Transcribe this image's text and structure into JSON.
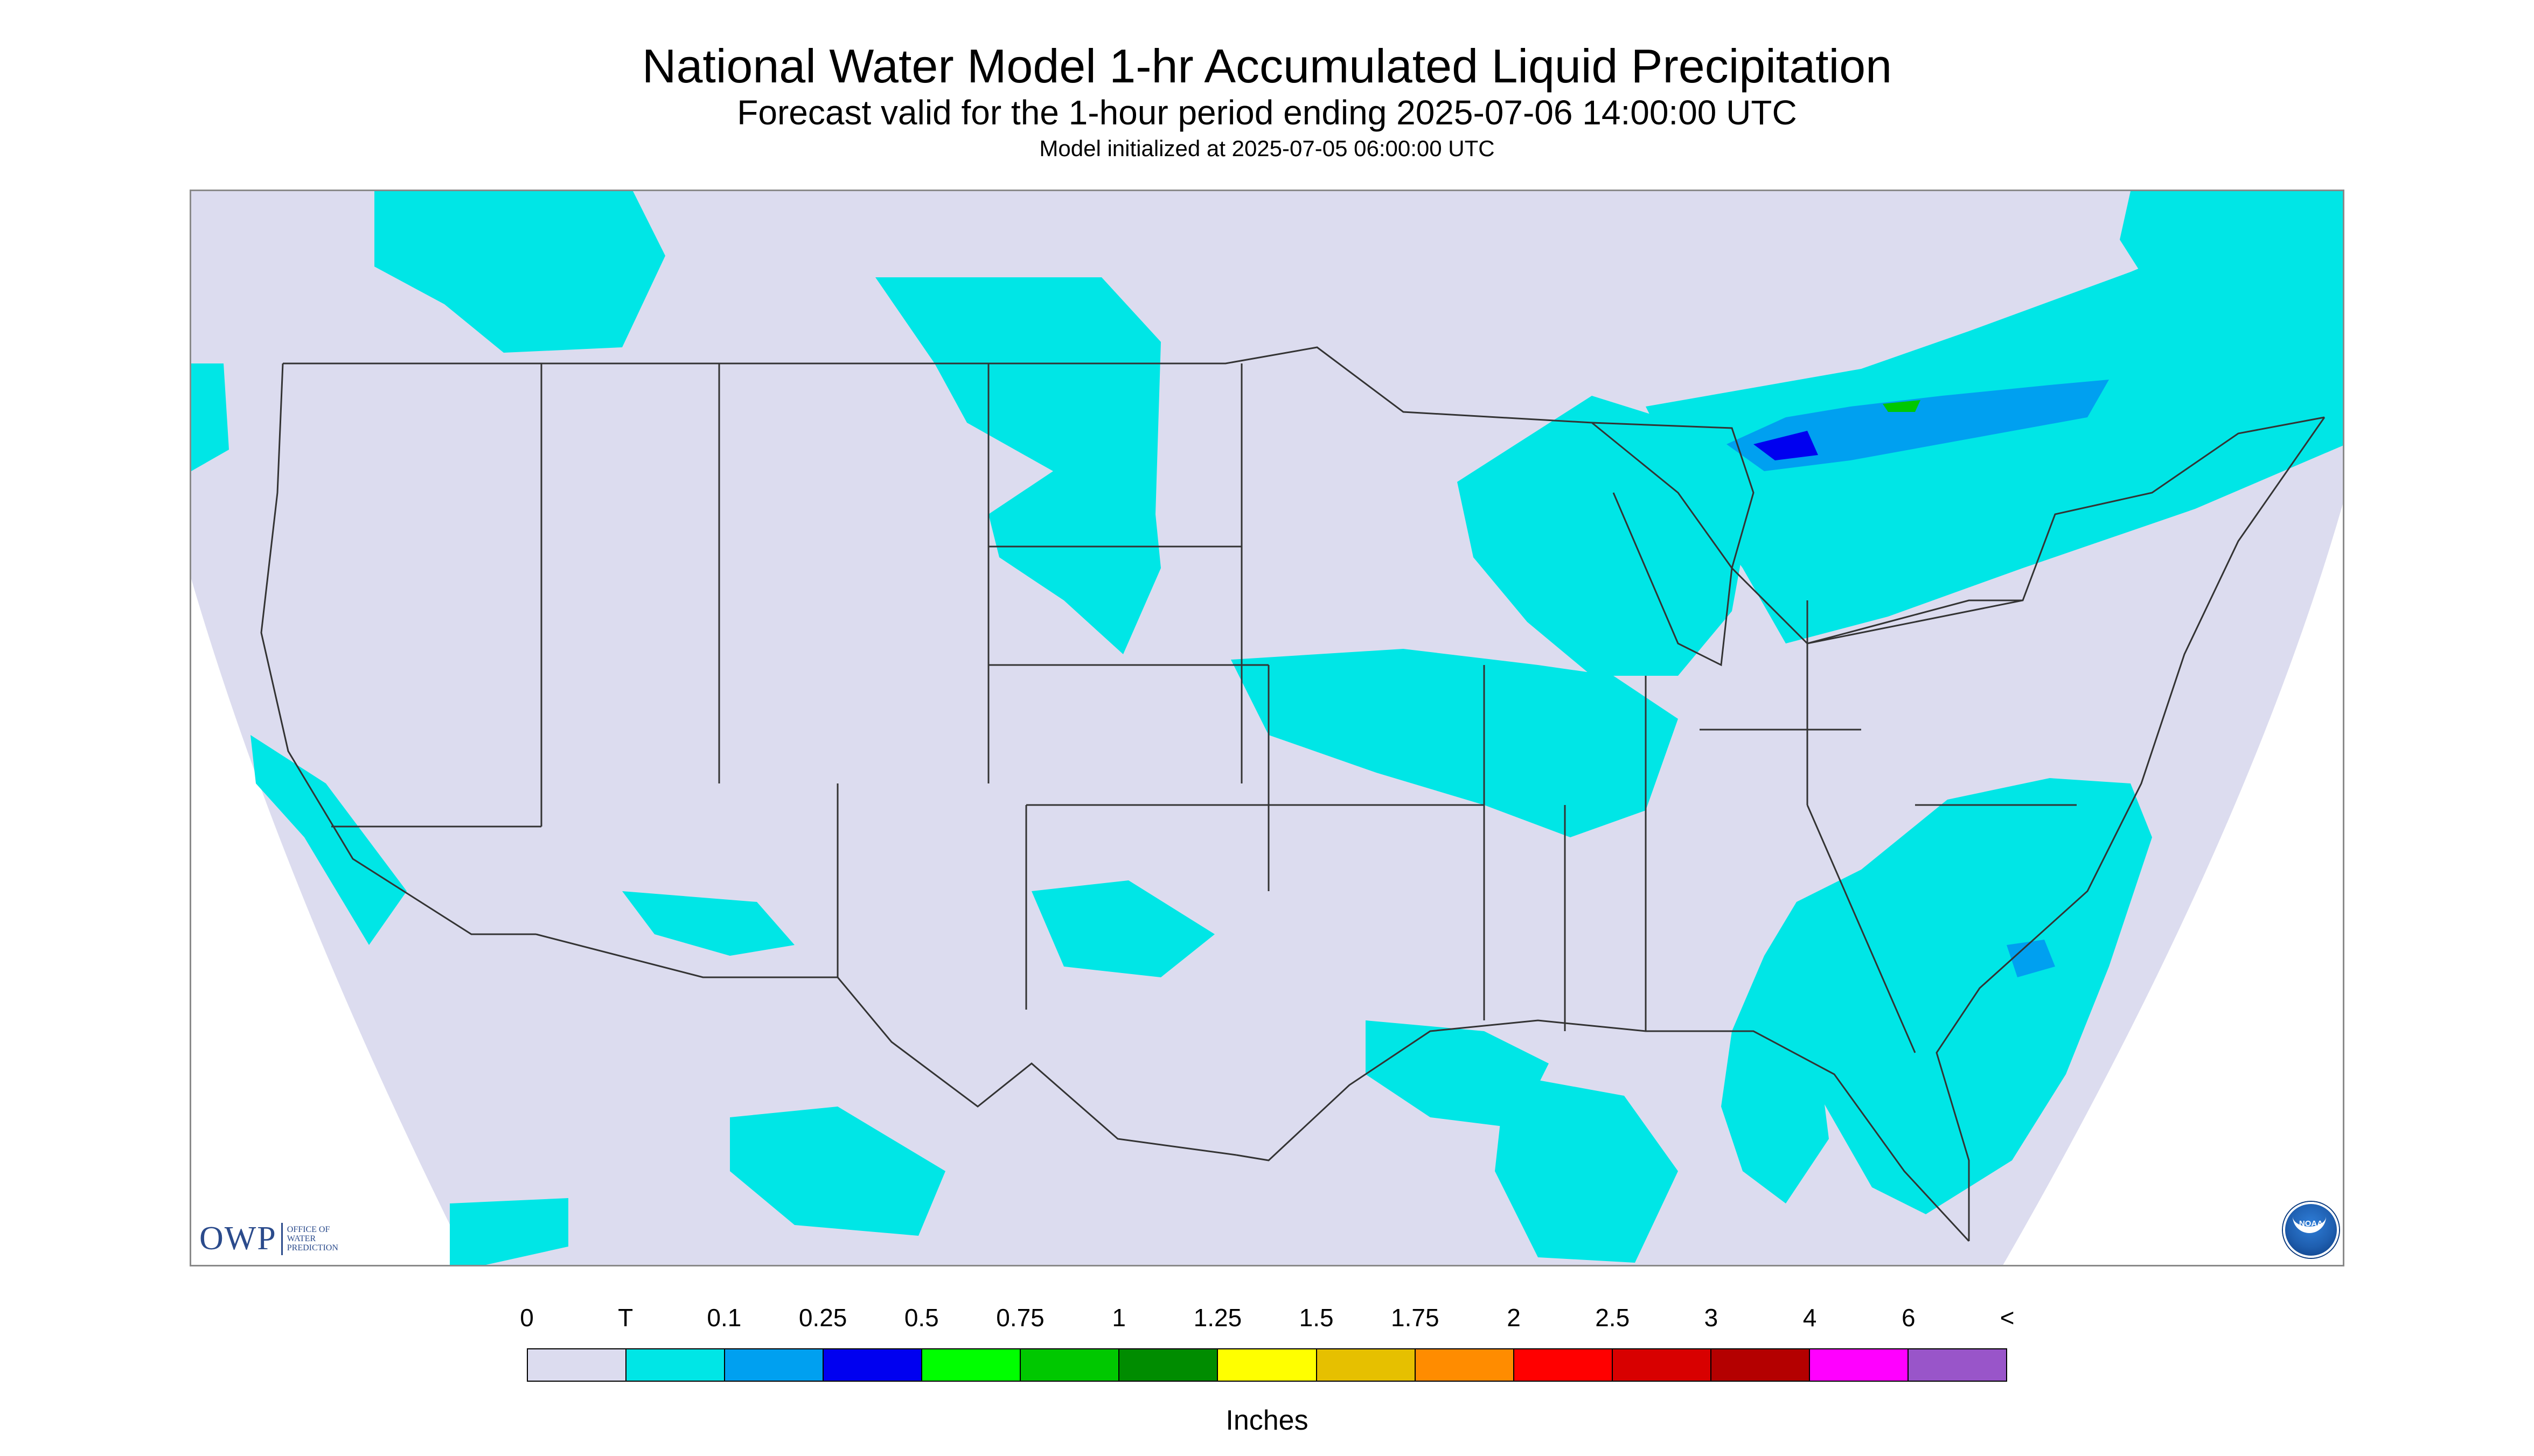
{
  "title": "National Water Model 1-hr Accumulated Liquid Precipitation",
  "subtitle": "Forecast valid for the 1-hour period ending 2025-07-06 14:00:00 UTC",
  "init_line": "Model initialized at 2025-07-05 06:00:00 UTC",
  "logos": {
    "owp": {
      "letters": "OWP",
      "sub": [
        "Office of",
        "Water",
        "Prediction"
      ]
    },
    "noaa": "NOAA"
  },
  "legend": {
    "tick_labels": [
      "0",
      "T",
      "0.1",
      "0.25",
      "0.5",
      "0.75",
      "1",
      "1.25",
      "1.5",
      "1.75",
      "2",
      "2.5",
      "3",
      "4",
      "6",
      "<"
    ],
    "colors": [
      "#dcdcef",
      "#00e6e6",
      "#00a0f0",
      "#0000f0",
      "#00ff00",
      "#00c800",
      "#008c00",
      "#ffff00",
      "#e6c000",
      "#ff8c00",
      "#ff0000",
      "#d80000",
      "#b40000",
      "#ff00ff",
      "#9955c9"
    ],
    "units": "Inches"
  },
  "map": {
    "background_color": "#dcdcef",
    "outside_color": "#ffffff",
    "border_line_color": "#333333",
    "features": [
      "precip-trace-pacific-northwest",
      "precip-trace-northern-plains",
      "precip-trace-upper-midwest",
      "precip-trace-great-lakes-canada",
      "precip-trace-mid-mississippi-valley",
      "precip-trace-southeast-atlantic",
      "precip-trace-gulf-coast",
      "precip-trace-southwest",
      "precip-0.1-ontario-core",
      "precip-0.25-ontario-core"
    ]
  }
}
